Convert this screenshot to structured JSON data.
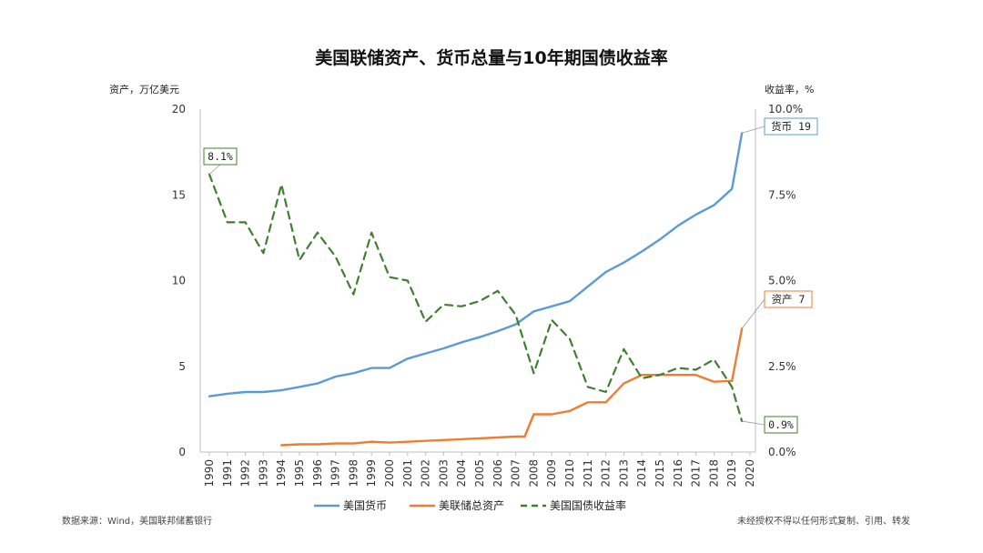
{
  "title": "美国联储资产、货币总量与10年期国债收益率",
  "source_note": "数据来源：Wind，美国联邦储蓄银行",
  "copyright_note": "未经授权不得以任何形式复制、引用、转发",
  "chart_data": {
    "type": "line",
    "title": "美国联储资产、货币总量与10年期国债收益率",
    "left_axis": {
      "unit_label": "资产，万亿美元",
      "range": [
        0,
        20
      ],
      "ticks": [
        0,
        5,
        10,
        15,
        20
      ],
      "tick_labels": [
        "0",
        "5",
        "10",
        "15",
        "20"
      ]
    },
    "right_axis": {
      "unit_label": "收益率，%",
      "range": [
        0,
        10
      ],
      "ticks": [
        0,
        2.5,
        5,
        7.5,
        10
      ],
      "tick_labels": [
        "0.0%",
        "2.5%",
        "5.0%",
        "7.5%",
        "10.0%"
      ]
    },
    "x": [
      "1990",
      "1991",
      "1992",
      "1993",
      "1994",
      "1995",
      "1996",
      "1997",
      "1998",
      "1999",
      "2000",
      "2001",
      "2002",
      "2003",
      "2004",
      "2005",
      "2006",
      "2007",
      "2008",
      "2009",
      "2010",
      "2011",
      "2012",
      "2013",
      "2014",
      "2015",
      "2016",
      "2017",
      "2018",
      "2019",
      "2020"
    ],
    "grid": false,
    "legend_position": "bottom",
    "series": [
      {
        "name": "美国货币",
        "axis": "left",
        "color": "#5b9bd5",
        "dash": "solid",
        "points": [
          [
            1990,
            3.25
          ],
          [
            1991,
            3.4
          ],
          [
            1992,
            3.5
          ],
          [
            1993,
            3.5
          ],
          [
            1994,
            3.6
          ],
          [
            1995,
            3.8
          ],
          [
            1996,
            4.0
          ],
          [
            1997,
            4.4
          ],
          [
            1998,
            4.6
          ],
          [
            1999,
            4.9
          ],
          [
            2000,
            4.9
          ],
          [
            2001,
            5.45
          ],
          [
            2002,
            5.75
          ],
          [
            2003,
            6.05
          ],
          [
            2004,
            6.4
          ],
          [
            2005,
            6.7
          ],
          [
            2006,
            7.05
          ],
          [
            2007,
            7.45
          ],
          [
            2008,
            8.2
          ],
          [
            2009,
            8.5
          ],
          [
            2010,
            8.8
          ],
          [
            2011,
            9.65
          ],
          [
            2012,
            10.5
          ],
          [
            2013,
            11.05
          ],
          [
            2014,
            11.7
          ],
          [
            2015,
            12.4
          ],
          [
            2016,
            13.2
          ],
          [
            2017,
            13.85
          ],
          [
            2018,
            14.4
          ],
          [
            2019,
            15.35
          ],
          [
            2019.55,
            18.6
          ]
        ]
      },
      {
        "name": "美联储总资产",
        "axis": "left",
        "color": "#ed7d31",
        "dash": "solid",
        "points": [
          [
            1994,
            0.4
          ],
          [
            1995,
            0.45
          ],
          [
            1996,
            0.45
          ],
          [
            1997,
            0.5
          ],
          [
            1998,
            0.5
          ],
          [
            1999,
            0.6
          ],
          [
            2000,
            0.55
          ],
          [
            2001,
            0.6
          ],
          [
            2002,
            0.65
          ],
          [
            2003,
            0.7
          ],
          [
            2004,
            0.75
          ],
          [
            2005,
            0.8
          ],
          [
            2006,
            0.85
          ],
          [
            2007,
            0.9
          ],
          [
            2007.5,
            0.9
          ],
          [
            2008,
            2.2
          ],
          [
            2009,
            2.2
          ],
          [
            2010,
            2.4
          ],
          [
            2011,
            2.9
          ],
          [
            2012,
            2.9
          ],
          [
            2013,
            4.0
          ],
          [
            2014,
            4.5
          ],
          [
            2015,
            4.5
          ],
          [
            2016,
            4.5
          ],
          [
            2017,
            4.5
          ],
          [
            2018,
            4.1
          ],
          [
            2019,
            4.15
          ],
          [
            2019.55,
            7.2
          ]
        ]
      },
      {
        "name": "美国国债收益率",
        "axis": "right",
        "color": "#3f7f2f",
        "dash": "dashed",
        "points": [
          [
            1990,
            8.1
          ],
          [
            1991,
            6.7
          ],
          [
            1992,
            6.7
          ],
          [
            1993,
            5.8
          ],
          [
            1994,
            7.8
          ],
          [
            1995,
            5.6
          ],
          [
            1996,
            6.4
          ],
          [
            1997,
            5.7
          ],
          [
            1998,
            4.6
          ],
          [
            1999,
            6.4
          ],
          [
            2000,
            5.1
          ],
          [
            2001,
            5.0
          ],
          [
            2002,
            3.8
          ],
          [
            2003,
            4.3
          ],
          [
            2004,
            4.25
          ],
          [
            2005,
            4.4
          ],
          [
            2006,
            4.7
          ],
          [
            2007,
            4.0
          ],
          [
            2008,
            2.3
          ],
          [
            2009,
            3.85
          ],
          [
            2010,
            3.3
          ],
          [
            2011,
            1.9
          ],
          [
            2012,
            1.75
          ],
          [
            2013,
            3.0
          ],
          [
            2014,
            2.15
          ],
          [
            2015,
            2.25
          ],
          [
            2016,
            2.45
          ],
          [
            2017,
            2.4
          ],
          [
            2018,
            2.7
          ],
          [
            2019,
            1.9
          ],
          [
            2019.55,
            0.9
          ]
        ]
      }
    ],
    "annotations": [
      {
        "text": "8.1%",
        "series": "美国国债收益率",
        "color": "#3f7f2f"
      },
      {
        "text": "货币 19",
        "series": "美国货币",
        "color": "#5b9bd5"
      },
      {
        "text": "资产 7",
        "series": "美联储总资产",
        "color": "#ed7d31"
      },
      {
        "text": "0.9%",
        "series": "美国国债收益率",
        "color": "#3f7f2f"
      }
    ]
  }
}
